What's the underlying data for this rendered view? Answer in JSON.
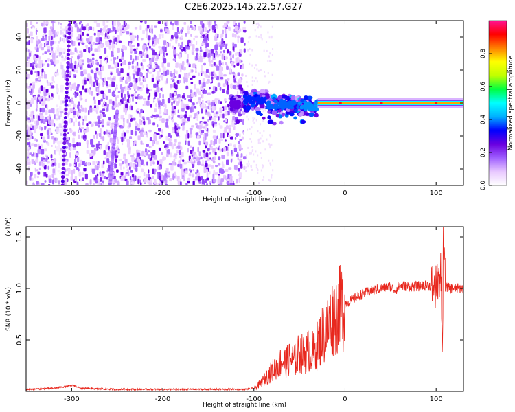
{
  "title": "C2E6.2025.145.22.57.G27",
  "chart_data": [
    {
      "type": "heatmap",
      "xlabel": "Height of straight line (km)",
      "ylabel": "Frequency (Hz)",
      "xlim": [
        -350,
        130
      ],
      "ylim": [
        -50,
        50
      ],
      "x_ticks": [
        -300,
        -200,
        -100,
        0,
        100
      ],
      "y_ticks": [
        -40,
        -20,
        0,
        20,
        40
      ],
      "colorbar": {
        "label": "Normalized spectral amplitude",
        "range": [
          0,
          1
        ],
        "ticks": [
          "0.0",
          "0.2",
          "0.4",
          "0.6",
          "0.8"
        ],
        "tick_values": [
          0.0,
          0.2,
          0.4,
          0.6,
          0.8
        ],
        "colors": [
          "#ffffff",
          "#e8c8ff",
          "#a060ff",
          "#6a00e0",
          "#0000ff",
          "#00b0ff",
          "#00ffff",
          "#00ff40",
          "#c0ff00",
          "#ffff00",
          "#ff8000",
          "#ff0000",
          "#ff1493"
        ]
      },
      "noise_region_x": [
        -350,
        -110
      ],
      "streaks": [
        {
          "x_start": -310,
          "x_end": -302,
          "y_start": -50,
          "y_end": 50,
          "amplitude": 0.25
        },
        {
          "x_start": -258,
          "x_end": -250,
          "y_start": -50,
          "y_end": -5,
          "amplitude": 0.15
        }
      ],
      "carrier": {
        "segments": [
          {
            "x": [
              -125,
              -110
            ],
            "y": -1,
            "amplitude": 0.25
          },
          {
            "x": [
              -110,
              -85
            ],
            "y": 2,
            "amplitude": 0.35
          },
          {
            "x": [
              -85,
              -50
            ],
            "y": -1,
            "amplitude": 0.38
          },
          {
            "x": [
              -50,
              -30
            ],
            "y": -2,
            "amplitude": 0.4
          },
          {
            "x": [
              -30,
              0
            ],
            "y": 0,
            "amplitude": 0.85
          },
          {
            "x": [
              0,
              130
            ],
            "y": 0,
            "amplitude": 0.85
          }
        ]
      }
    },
    {
      "type": "line",
      "xlabel": "Height of straight line (km)",
      "ylabel": "SNR (10 * v/v)",
      "multiplier_label": "(x10⁴)",
      "xlim": [
        -350,
        130
      ],
      "ylim": [
        0,
        1.6
      ],
      "x_ticks": [
        -300,
        -200,
        -100,
        0,
        100
      ],
      "y_ticks": [
        0.5,
        1.0,
        1.5
      ],
      "y_tick_labels": [
        "0.5",
        "1.0",
        "1.5"
      ],
      "series": [
        {
          "color": "#e8281e",
          "x": [
            -350,
            -320,
            -305,
            -298,
            -290,
            -250,
            -200,
            -150,
            -110,
            -100,
            -95,
            -90,
            -85,
            -80,
            -75,
            -70,
            -65,
            -60,
            -55,
            -50,
            -45,
            -40,
            -35,
            -30,
            -25,
            -20,
            -15,
            -10,
            -5,
            0,
            10,
            20,
            30,
            40,
            50,
            55,
            60,
            70,
            80,
            90,
            100,
            103,
            105,
            107,
            108,
            110,
            115,
            120,
            130
          ],
          "y": [
            0.02,
            0.03,
            0.05,
            0.06,
            0.03,
            0.02,
            0.02,
            0.02,
            0.02,
            0.03,
            0.06,
            0.1,
            0.15,
            0.2,
            0.25,
            0.3,
            0.28,
            0.32,
            0.3,
            0.38,
            0.35,
            0.4,
            0.38,
            0.45,
            0.55,
            0.6,
            0.7,
            0.75,
            0.8,
            0.85,
            0.9,
            0.95,
            0.98,
            1.0,
            1.02,
            0.98,
            1.03,
            1.02,
            1.02,
            1.03,
            1.01,
            1.05,
            1.25,
            0.4,
            1.55,
            1.02,
            1.0,
            1.0,
            1.0
          ]
        }
      ]
    }
  ]
}
